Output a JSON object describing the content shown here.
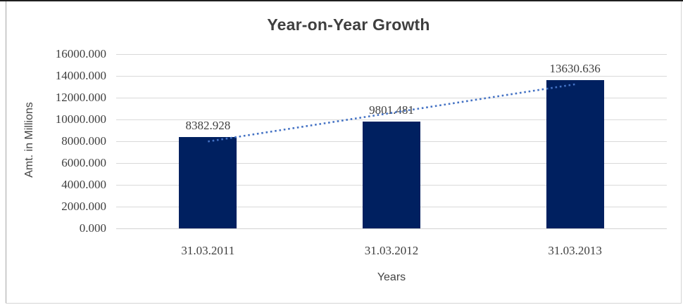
{
  "title": "Year-on-Year Growth",
  "colors": {
    "bar": "#002060",
    "trendline": "#4472c4",
    "gridline": "#d9d9d9",
    "axis_line": "#d3d3d3",
    "tick_text": "#3f3f3f",
    "title_text": "#3f3f3f",
    "frame_top": "#1f1f1f",
    "frame_left": "#a6a6a6",
    "frame_light": "#d4d4d4",
    "background": "#ffffff"
  },
  "chart_data": {
    "type": "bar",
    "title": "Year-on-Year Growth",
    "xlabel": "Years",
    "ylabel": "Amt. in Millions",
    "categories": [
      "31.03.2011",
      "31.03.2012",
      "31.03.2013"
    ],
    "values": [
      8382.928,
      9801.481,
      13630.636
    ],
    "data_labels": [
      "8382.928",
      "9801.481",
      "13630.636"
    ],
    "ylim": [
      0,
      16000
    ],
    "ytick_step": 2000,
    "ytick_labels": [
      "0.000",
      "2000.000",
      "4000.000",
      "6000.000",
      "8000.000",
      "10000.000",
      "12000.000",
      "14000.000",
      "16000.000"
    ],
    "grid": true,
    "legend": "none",
    "trendline": "linear dotted"
  }
}
